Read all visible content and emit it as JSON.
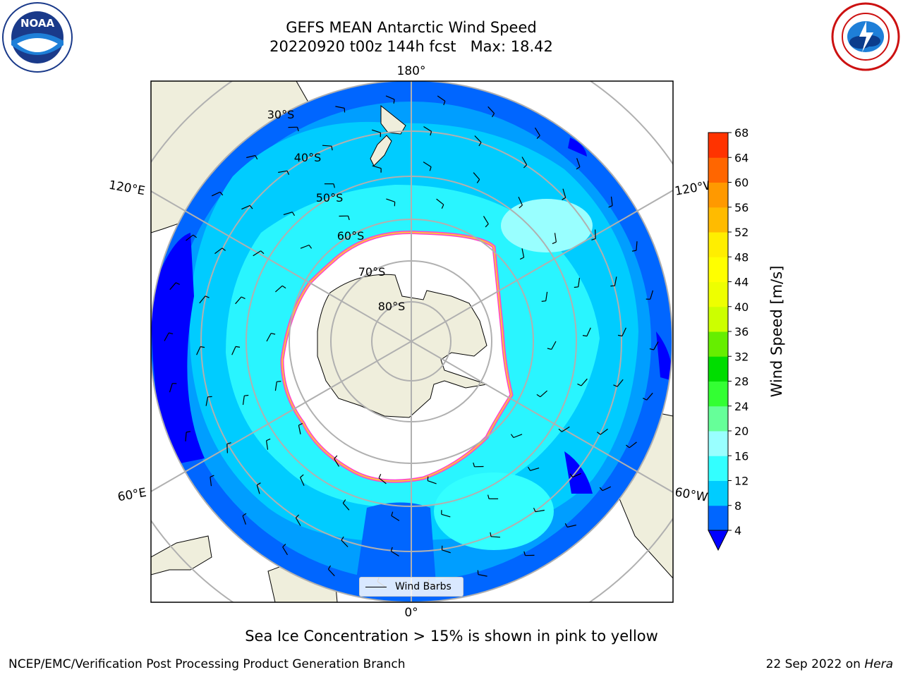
{
  "title": {
    "line1": "GEFS MEAN Antarctic Wind Speed",
    "line2": "20220920 t00z 144h fcst   Max: 18.42"
  },
  "logos": {
    "noaa": {
      "text": "NOAA",
      "icon": "noaa-logo-icon"
    },
    "nws": {
      "icon": "national-weather-service-logo-icon"
    }
  },
  "map": {
    "projection": "south-polar-stereographic",
    "longitude_labels": {
      "top": "180°",
      "bottom": "0°",
      "upper_left": "120°E",
      "upper_right": "120°W",
      "lower_left": "60°E",
      "lower_right": "60°W"
    },
    "latitude_labels": [
      "30°S",
      "40°S",
      "50°S",
      "60°S",
      "70°S",
      "80°S"
    ],
    "legend_entry": "Wind Barbs",
    "colors": {
      "land": "#efeedc",
      "ice_edge_pink": "#ff44cc",
      "ice_edge_yellow": "#ffc040",
      "background_ocean": "#0066ff"
    }
  },
  "colorbar": {
    "label": "Wind Speed [m/s]",
    "ticks": [
      "4",
      "8",
      "12",
      "16",
      "20",
      "24",
      "28",
      "32",
      "36",
      "40",
      "44",
      "48",
      "52",
      "56",
      "60",
      "64",
      "68"
    ],
    "colors": [
      "#0066ff",
      "#00ccff",
      "#33ffff",
      "#99ffff",
      "#66ff99",
      "#33ff33",
      "#00dd00",
      "#66ee00",
      "#ccff00",
      "#eeff00",
      "#ffff00",
      "#ffee00",
      "#ffbb00",
      "#ff9900",
      "#ff6600",
      "#ff3300",
      "#ff0000"
    ],
    "extend_color": "#0000ff"
  },
  "note": "Sea Ice Concentration > 15% is shown in pink to yellow",
  "footer": {
    "left": "NCEP/EMC/Verification Post Processing Product Generation Branch",
    "right_date": "22 Sep 2022 on ",
    "right_system": "Hera"
  }
}
